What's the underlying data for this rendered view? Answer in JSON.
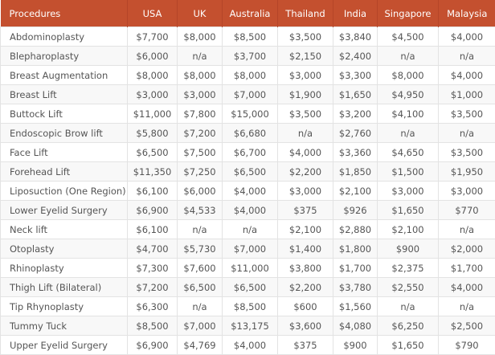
{
  "table": {
    "headers": [
      "Procedures",
      "USA",
      "UK",
      "Australia",
      "Thailand",
      "India",
      "Singapore",
      "Malaysia"
    ],
    "rows": [
      [
        "Abdominoplasty",
        "$7,700",
        "$8,000",
        "$8,500",
        "$3,500",
        "$3,840",
        "$4,500",
        "$4,000"
      ],
      [
        "Blepharoplasty",
        "$6,000",
        "n/a",
        "$3,700",
        "$2,150",
        "$2,400",
        "n/a",
        "n/a"
      ],
      [
        "Breast Augmentation",
        "$8,000",
        "$8,000",
        "$8,000",
        "$3,000",
        "$3,300",
        "$8,000",
        "$4,000"
      ],
      [
        "Breast Lift",
        "$3,000",
        "$3,000",
        "$7,000",
        "$1,900",
        "$1,650",
        "$4,950",
        "$1,000"
      ],
      [
        "Buttock Lift",
        "$11,000",
        "$7,800",
        "$15,000",
        "$3,500",
        "$3,200",
        "$4,100",
        "$3,500"
      ],
      [
        "Endoscopic Brow lift",
        "$5,800",
        "$7,200",
        "$6,680",
        "n/a",
        "$2,760",
        "n/a",
        "n/a"
      ],
      [
        "Face Lift",
        "$6,500",
        "$7,500",
        "$6,700",
        "$4,000",
        "$3,360",
        "$4,650",
        "$3,500"
      ],
      [
        "Forehead Lift",
        "$11,350",
        "$7,250",
        "$6,500",
        "$2,200",
        "$1,850",
        "$1,500",
        "$1,950"
      ],
      [
        "Liposuction (One Region)",
        "$6,100",
        "$6,000",
        "$4,000",
        "$3,000",
        "$2,100",
        "$3,000",
        "$3,000"
      ],
      [
        "Lower Eyelid Surgery",
        "$6,900",
        "$4,533",
        "$4,000",
        "$375",
        "$926",
        "$1,650",
        "$770"
      ],
      [
        "Neck lift",
        "$6,100",
        "n/a",
        "n/a",
        "$2,100",
        "$2,880",
        "$2,100",
        "n/a"
      ],
      [
        "Otoplasty",
        "$4,700",
        "$5,730",
        "$7,000",
        "$1,400",
        "$1,800",
        "$900",
        "$2,000"
      ],
      [
        "Rhinoplasty",
        "$7,300",
        "$7,600",
        "$11,000",
        "$3,800",
        "$1,700",
        "$2,375",
        "$1,700"
      ],
      [
        "Thigh Lift (Bilateral)",
        "$7,200",
        "$6,500",
        "$6,500",
        "$2,200",
        "$3,780",
        "$2,550",
        "$4,000"
      ],
      [
        "Tip Rhynoplasty",
        "$6,300",
        "n/a",
        "$8,500",
        "$600",
        "$1,560",
        "n/a",
        "n/a"
      ],
      [
        "Tummy Tuck",
        "$8,500",
        "$7,000",
        "$13,175",
        "$3,600",
        "$4,080",
        "$6,250",
        "$2,500"
      ],
      [
        "Upper Eyelid Surgery",
        "$6,900",
        "$4,769",
        "$4,000",
        "$375",
        "$900",
        "$1,650",
        "$790"
      ]
    ]
  },
  "colors": {
    "header_bg": "#c4502f",
    "header_text": "#ffffff",
    "body_text": "#555555",
    "stripe": "#f8f8f8",
    "border": "#e3e3e3"
  }
}
